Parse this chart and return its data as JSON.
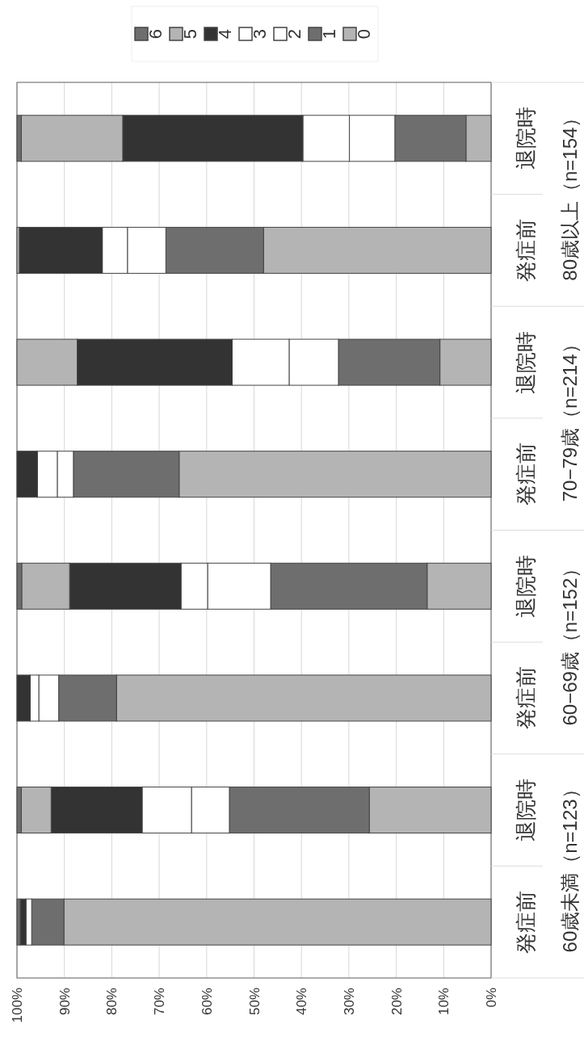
{
  "chart_data": {
    "type": "bar",
    "stacked": true,
    "orientation": "horizontal",
    "categories": [
      "退院時",
      "発症前",
      "退院時",
      "発症前",
      "退院時",
      "発症前",
      "退院時",
      "発症前"
    ],
    "series": [
      {
        "name": "0",
        "color": "#b4b4b4",
        "values": [
          5.3,
          48.0,
          10.8,
          65.8,
          13.5,
          79.0,
          25.7,
          90.1
        ]
      },
      {
        "name": "1",
        "color": "#6e6e6e",
        "values": [
          15.0,
          20.6,
          21.4,
          22.3,
          33.0,
          12.2,
          29.5,
          6.8
        ]
      },
      {
        "name": "2",
        "color": "#ffffff",
        "values": [
          9.6,
          8.1,
          10.4,
          3.4,
          13.3,
          4.2,
          8.0,
          1.2
        ]
      },
      {
        "name": "3",
        "color": "#ffffff",
        "values": [
          9.8,
          5.3,
          12.0,
          4.2,
          5.6,
          1.8,
          10.4,
          0
        ]
      },
      {
        "name": "4",
        "color": "#333333",
        "values": [
          38.0,
          17.5,
          32.7,
          4.3,
          23.5,
          2.8,
          19.2,
          1.2
        ]
      },
      {
        "name": "5",
        "color": "#b4b4b4",
        "values": [
          21.4,
          0.5,
          12.7,
          0,
          10.1,
          0,
          6.3,
          0
        ]
      },
      {
        "name": "6",
        "color": "#6e6e6e",
        "values": [
          0.9,
          0,
          0,
          0,
          1.0,
          0,
          0.9,
          0.7
        ]
      }
    ],
    "xlim": [
      100,
      0
    ],
    "xticks": [
      {
        "value": 100,
        "label": "100%"
      },
      {
        "value": 90,
        "label": "90%"
      },
      {
        "value": 80,
        "label": "80%"
      },
      {
        "value": 70,
        "label": "70%"
      },
      {
        "value": 60,
        "label": "60%"
      },
      {
        "value": 50,
        "label": "50%"
      },
      {
        "value": 40,
        "label": "40%"
      },
      {
        "value": 30,
        "label": "30%"
      },
      {
        "value": 20,
        "label": "20%"
      },
      {
        "value": 10,
        "label": "10%"
      },
      {
        "value": 0,
        "label": "0%"
      }
    ],
    "grid": "x",
    "legend": "top",
    "annotations": [
      "80歳以上（n=154）",
      "70−79歳（n=214）",
      "60−69歳（n=152）",
      "60歳未満（n=123）"
    ]
  }
}
